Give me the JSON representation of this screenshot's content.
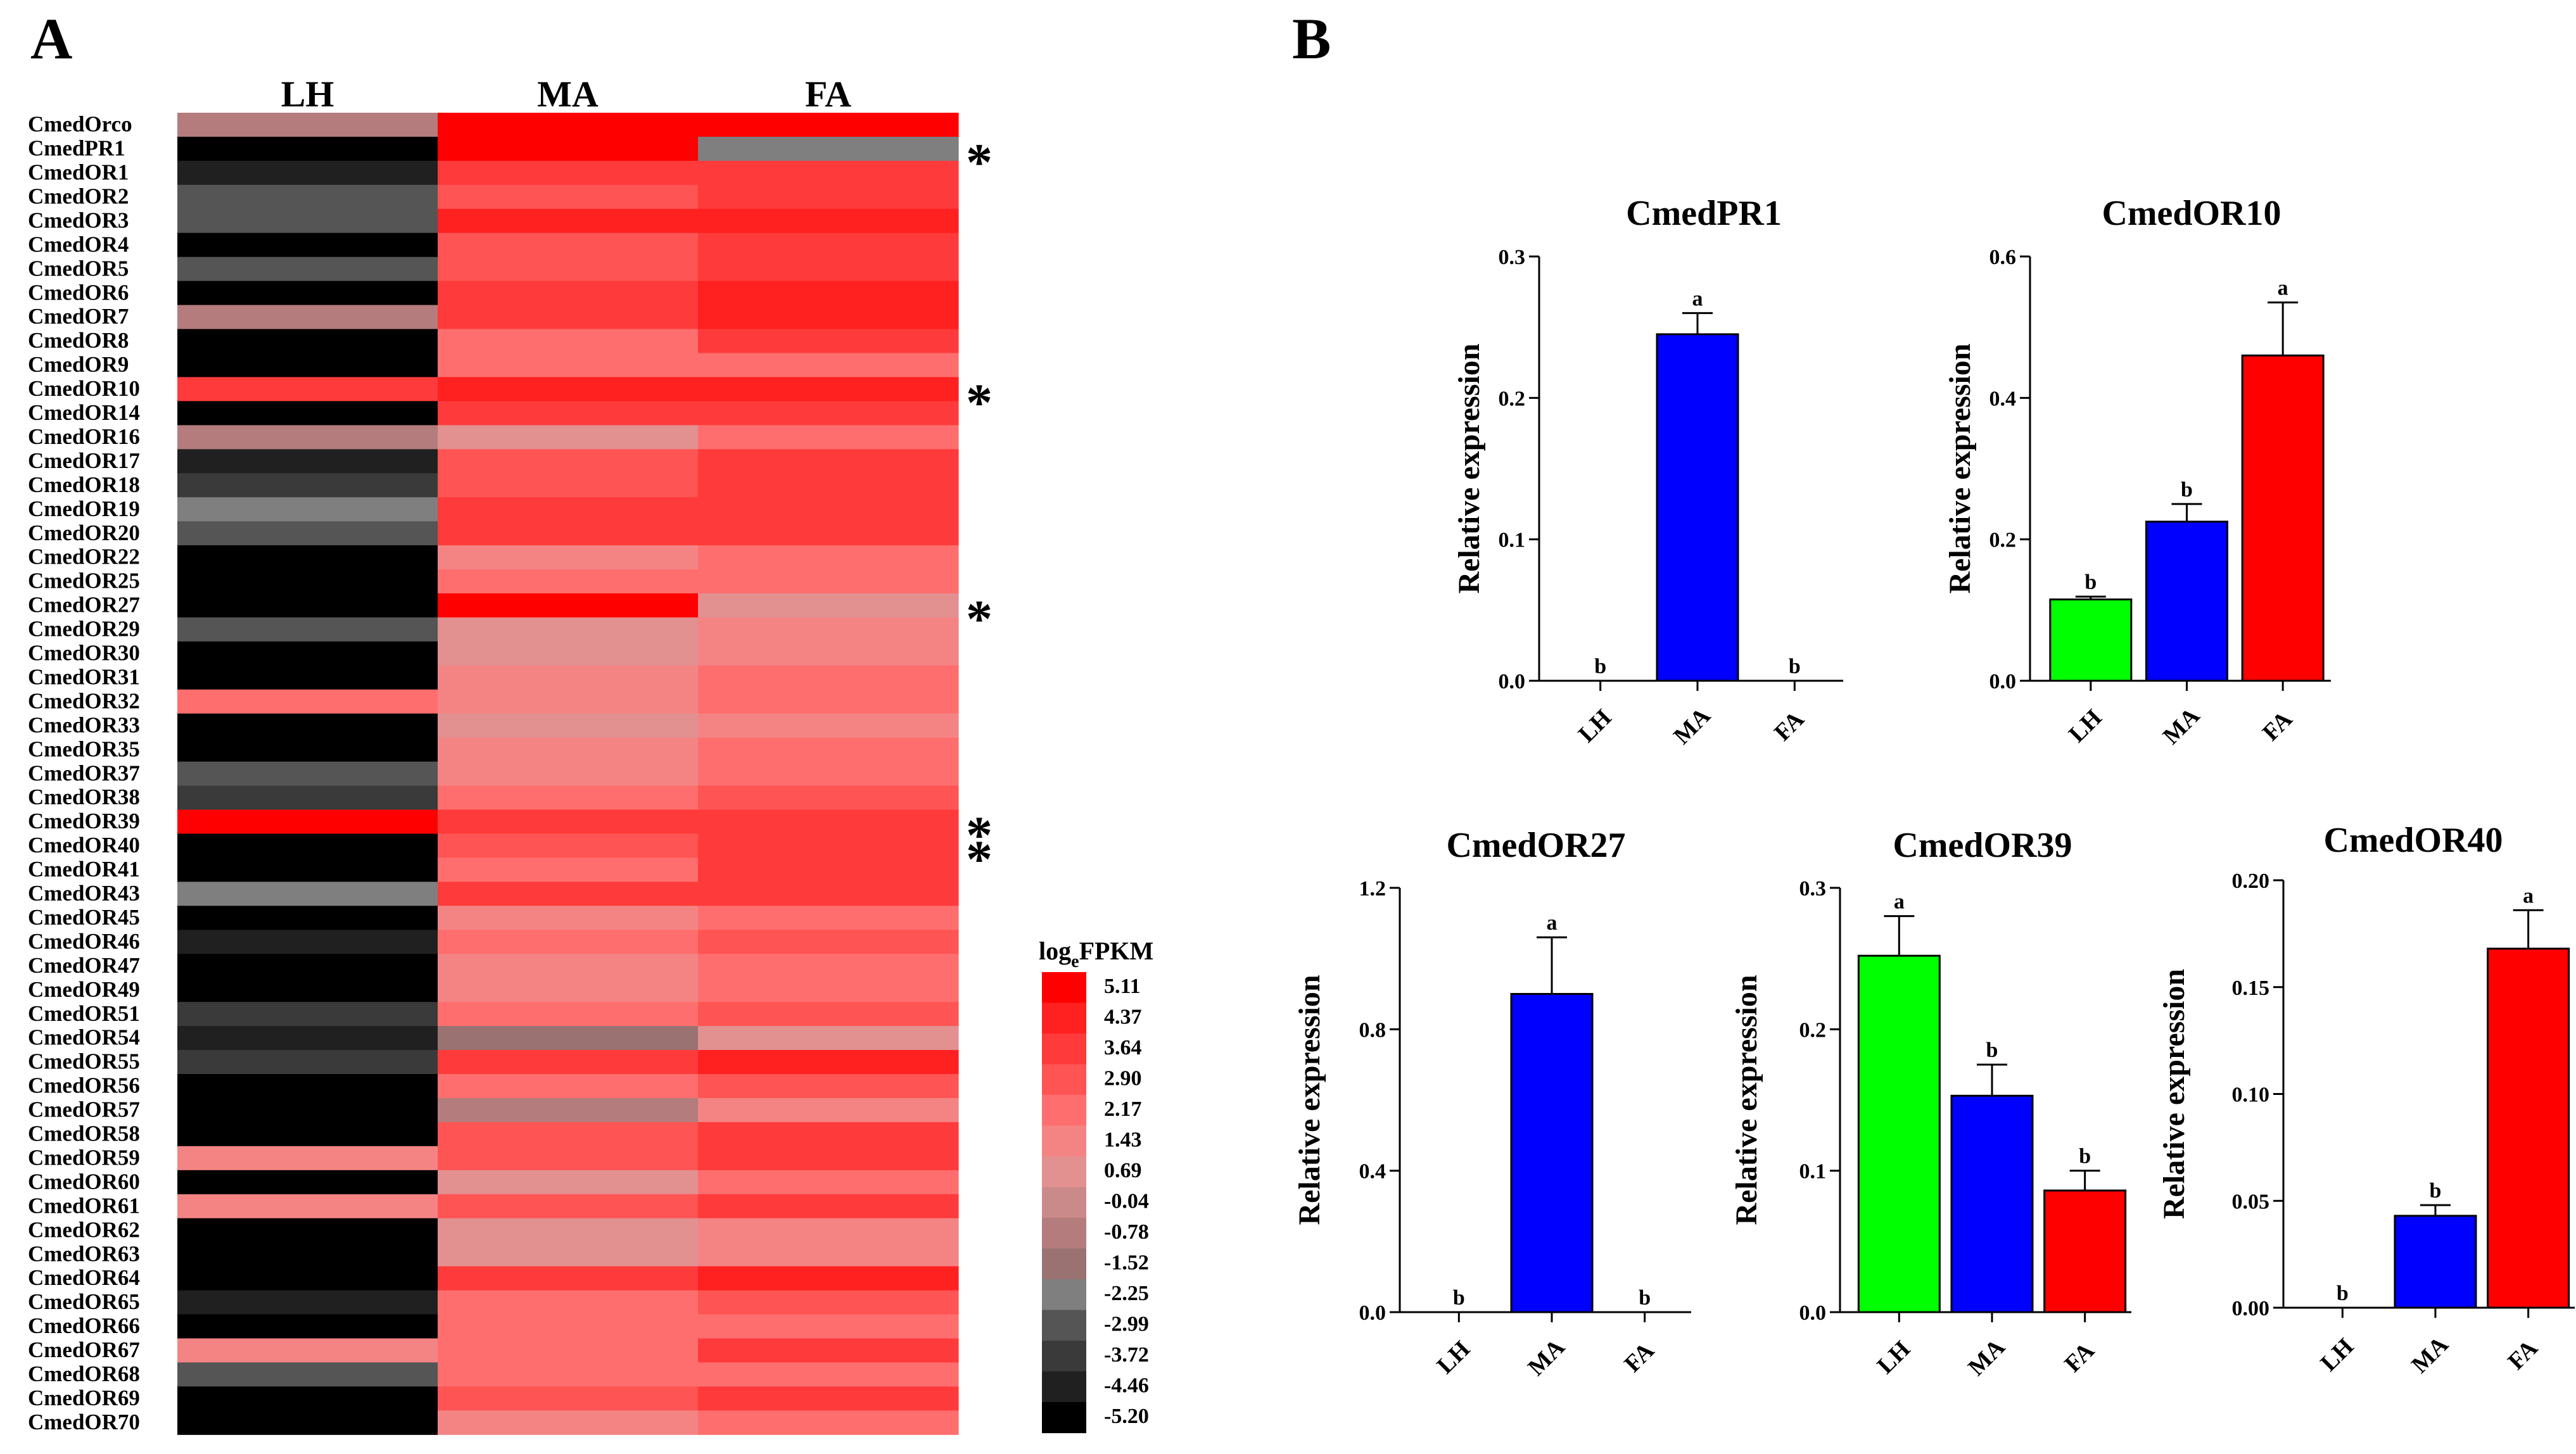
{
  "panels": {
    "a": "A",
    "b": "B"
  },
  "heatmap": {
    "columns": [
      "LH",
      "MA",
      "FA"
    ],
    "legend_title_main": "log",
    "legend_title_sub": "e",
    "legend_title_rest": "FPKM",
    "legend_values": [
      "5.11",
      "4.37",
      "3.64",
      "2.90",
      "2.17",
      "1.43",
      "0.69",
      "-0.04",
      "-0.78",
      "-1.52",
      "-2.25",
      "-2.99",
      "-3.72",
      "-4.46",
      "-5.20"
    ],
    "legend_colors": [
      "#ff0000",
      "#ff2020",
      "#ff3a3a",
      "#ff5454",
      "#ff6e6e",
      "#f48484",
      "#e29090",
      "#cb8a8a",
      "#b47c7c",
      "#9a7272",
      "#7f7f7f",
      "#555555",
      "#3a3a3a",
      "#202020",
      "#000000"
    ],
    "star_mark": "*",
    "rows": [
      {
        "gene": "CmedOrco",
        "values": [
          -0.78,
          5.11,
          5.11
        ],
        "star": false
      },
      {
        "gene": "CmedPR1",
        "values": [
          -5.2,
          5.11,
          -2.25
        ],
        "star": true
      },
      {
        "gene": "CmedOR1",
        "values": [
          -4.46,
          3.64,
          3.64
        ],
        "star": false
      },
      {
        "gene": "CmedOR2",
        "values": [
          -2.99,
          2.9,
          3.64
        ],
        "star": false
      },
      {
        "gene": "CmedOR3",
        "values": [
          -2.99,
          4.37,
          4.37
        ],
        "star": false
      },
      {
        "gene": "CmedOR4",
        "values": [
          -5.2,
          2.9,
          3.64
        ],
        "star": false
      },
      {
        "gene": "CmedOR5",
        "values": [
          -2.99,
          2.9,
          3.64
        ],
        "star": false
      },
      {
        "gene": "CmedOR6",
        "values": [
          -5.2,
          3.64,
          4.37
        ],
        "star": false
      },
      {
        "gene": "CmedOR7",
        "values": [
          -0.78,
          3.64,
          4.37
        ],
        "star": false
      },
      {
        "gene": "CmedOR8",
        "values": [
          -5.2,
          2.17,
          3.64
        ],
        "star": false
      },
      {
        "gene": "CmedOR9",
        "values": [
          -5.2,
          2.17,
          2.17
        ],
        "star": false
      },
      {
        "gene": "CmedOR10",
        "values": [
          3.64,
          4.37,
          4.37
        ],
        "star": true
      },
      {
        "gene": "CmedOR14",
        "values": [
          -5.2,
          3.64,
          3.64
        ],
        "star": false
      },
      {
        "gene": "CmedOR16",
        "values": [
          -0.78,
          0.69,
          2.17
        ],
        "star": false
      },
      {
        "gene": "CmedOR17",
        "values": [
          -4.46,
          2.9,
          3.64
        ],
        "star": false
      },
      {
        "gene": "CmedOR18",
        "values": [
          -3.72,
          2.9,
          3.64
        ],
        "star": false
      },
      {
        "gene": "CmedOR19",
        "values": [
          -2.25,
          3.64,
          3.64
        ],
        "star": false
      },
      {
        "gene": "CmedOR20",
        "values": [
          -2.99,
          3.64,
          3.64
        ],
        "star": false
      },
      {
        "gene": "CmedOR22",
        "values": [
          -5.2,
          1.43,
          2.17
        ],
        "star": false
      },
      {
        "gene": "CmedOR25",
        "values": [
          -5.2,
          2.17,
          2.17
        ],
        "star": false
      },
      {
        "gene": "CmedOR27",
        "values": [
          -5.2,
          5.11,
          0.69
        ],
        "star": true
      },
      {
        "gene": "CmedOR29",
        "values": [
          -2.99,
          0.69,
          1.43
        ],
        "star": false
      },
      {
        "gene": "CmedOR30",
        "values": [
          -5.2,
          0.69,
          1.43
        ],
        "star": false
      },
      {
        "gene": "CmedOR31",
        "values": [
          -5.2,
          1.43,
          2.17
        ],
        "star": false
      },
      {
        "gene": "CmedOR32",
        "values": [
          2.17,
          1.43,
          2.17
        ],
        "star": false
      },
      {
        "gene": "CmedOR33",
        "values": [
          -5.2,
          0.69,
          1.43
        ],
        "star": false
      },
      {
        "gene": "CmedOR35",
        "values": [
          -5.2,
          1.43,
          2.17
        ],
        "star": false
      },
      {
        "gene": "CmedOR37",
        "values": [
          -2.99,
          1.43,
          2.17
        ],
        "star": false
      },
      {
        "gene": "CmedOR38",
        "values": [
          -3.72,
          2.17,
          2.9
        ],
        "star": false
      },
      {
        "gene": "CmedOR39",
        "values": [
          5.11,
          3.64,
          3.64
        ],
        "star": true
      },
      {
        "gene": "CmedOR40",
        "values": [
          -5.2,
          2.9,
          3.64
        ],
        "star": true
      },
      {
        "gene": "CmedOR41",
        "values": [
          -5.2,
          2.17,
          3.64
        ],
        "star": false
      },
      {
        "gene": "CmedOR43",
        "values": [
          -2.25,
          3.64,
          3.64
        ],
        "star": false
      },
      {
        "gene": "CmedOR45",
        "values": [
          -5.2,
          1.43,
          2.17
        ],
        "star": false
      },
      {
        "gene": "CmedOR46",
        "values": [
          -4.46,
          2.17,
          2.9
        ],
        "star": false
      },
      {
        "gene": "CmedOR47",
        "values": [
          -5.2,
          1.43,
          2.17
        ],
        "star": false
      },
      {
        "gene": "CmedOR49",
        "values": [
          -5.2,
          1.43,
          2.17
        ],
        "star": false
      },
      {
        "gene": "CmedOR51",
        "values": [
          -3.72,
          2.17,
          2.9
        ],
        "star": false
      },
      {
        "gene": "CmedOR54",
        "values": [
          -4.46,
          -1.52,
          0.69
        ],
        "star": false
      },
      {
        "gene": "CmedOR55",
        "values": [
          -3.72,
          3.64,
          4.37
        ],
        "star": false
      },
      {
        "gene": "CmedOR56",
        "values": [
          -5.2,
          2.17,
          2.9
        ],
        "star": false
      },
      {
        "gene": "CmedOR57",
        "values": [
          -5.2,
          -0.78,
          1.43
        ],
        "star": false
      },
      {
        "gene": "CmedOR58",
        "values": [
          -5.2,
          2.9,
          3.64
        ],
        "star": false
      },
      {
        "gene": "CmedOR59",
        "values": [
          1.43,
          2.9,
          3.64
        ],
        "star": false
      },
      {
        "gene": "CmedOR60",
        "values": [
          -5.2,
          0.69,
          2.17
        ],
        "star": false
      },
      {
        "gene": "CmedOR61",
        "values": [
          1.43,
          2.9,
          3.64
        ],
        "star": false
      },
      {
        "gene": "CmedOR62",
        "values": [
          -5.2,
          0.69,
          1.43
        ],
        "star": false
      },
      {
        "gene": "CmedOR63",
        "values": [
          -5.2,
          0.69,
          1.43
        ],
        "star": false
      },
      {
        "gene": "CmedOR64",
        "values": [
          -5.2,
          3.64,
          4.37
        ],
        "star": false
      },
      {
        "gene": "CmedOR65",
        "values": [
          -4.46,
          2.17,
          2.9
        ],
        "star": false
      },
      {
        "gene": "CmedOR66",
        "values": [
          -5.2,
          2.17,
          2.17
        ],
        "star": false
      },
      {
        "gene": "CmedOR67",
        "values": [
          1.43,
          2.17,
          3.64
        ],
        "star": false
      },
      {
        "gene": "CmedOR68",
        "values": [
          -2.99,
          2.17,
          2.17
        ],
        "star": false
      },
      {
        "gene": "CmedOR69",
        "values": [
          -5.2,
          2.9,
          3.64
        ],
        "star": false
      },
      {
        "gene": "CmedOR70",
        "values": [
          -5.2,
          1.43,
          2.17
        ],
        "star": false
      }
    ]
  },
  "chart_data": [
    {
      "type": "bar",
      "title": "CmedPR1",
      "ylabel": "Relative expression",
      "categories": [
        "LH",
        "MA",
        "FA"
      ],
      "values": [
        0.0,
        0.245,
        0.0
      ],
      "errors": [
        0,
        0.015,
        0
      ],
      "letters": [
        "b",
        "a",
        "b"
      ],
      "colors": [
        "#00ff00",
        "#0000ff",
        "#ff0000"
      ],
      "ylim": [
        0,
        0.3
      ],
      "yticks": [
        "0.0",
        "0.1",
        "0.2",
        "0.3"
      ]
    },
    {
      "type": "bar",
      "title": "CmedOR10",
      "ylabel": "Relative expression",
      "categories": [
        "LH",
        "MA",
        "FA"
      ],
      "values": [
        0.115,
        0.225,
        0.46
      ],
      "errors": [
        0.004,
        0.025,
        0.075
      ],
      "letters": [
        "b",
        "b",
        "a"
      ],
      "colors": [
        "#00ff00",
        "#0000ff",
        "#ff0000"
      ],
      "ylim": [
        0,
        0.6
      ],
      "yticks": [
        "0.0",
        "0.2",
        "0.4",
        "0.6"
      ]
    },
    {
      "type": "bar",
      "title": "CmedOR27",
      "ylabel": "Relative expression",
      "categories": [
        "LH",
        "MA",
        "FA"
      ],
      "values": [
        0.0,
        0.9,
        0.0
      ],
      "errors": [
        0,
        0.16,
        0
      ],
      "letters": [
        "b",
        "a",
        "b"
      ],
      "colors": [
        "#00ff00",
        "#0000ff",
        "#ff0000"
      ],
      "ylim": [
        0,
        1.2
      ],
      "yticks": [
        "0.0",
        "0.4",
        "0.8",
        "1.2"
      ]
    },
    {
      "type": "bar",
      "title": "CmedOR39",
      "ylabel": "Relative expression",
      "categories": [
        "LH",
        "MA",
        "FA"
      ],
      "values": [
        0.252,
        0.153,
        0.086
      ],
      "errors": [
        0.028,
        0.022,
        0.014
      ],
      "letters": [
        "a",
        "b",
        "b"
      ],
      "colors": [
        "#00ff00",
        "#0000ff",
        "#ff0000"
      ],
      "ylim": [
        0,
        0.3
      ],
      "yticks": [
        "0.0",
        "0.1",
        "0.2",
        "0.3"
      ]
    },
    {
      "type": "bar",
      "title": "CmedOR40",
      "ylabel": "Relative expression",
      "categories": [
        "LH",
        "MA",
        "FA"
      ],
      "values": [
        0.0,
        0.043,
        0.168
      ],
      "errors": [
        0,
        0.005,
        0.018
      ],
      "letters": [
        "b",
        "b",
        "a"
      ],
      "colors": [
        "#00ff00",
        "#0000ff",
        "#ff0000"
      ],
      "ylim": [
        0,
        0.2
      ],
      "yticks": [
        "0.00",
        "0.05",
        "0.10",
        "0.15",
        "0.20"
      ]
    }
  ]
}
